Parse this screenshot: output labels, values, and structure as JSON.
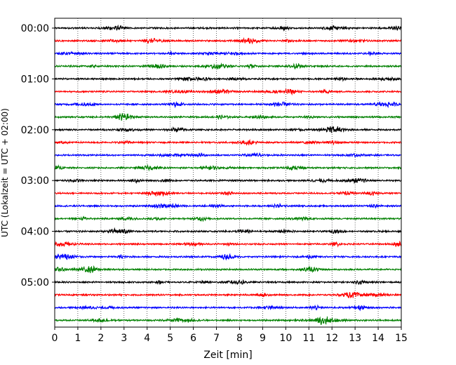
{
  "chart_data": {
    "type": "line",
    "title": "",
    "xlabel": "Zeit  [min]",
    "ylabel": "UTC (Lokalzeit = UTC + 02:00)",
    "xlim": [
      0,
      15
    ],
    "x_ticks": [
      0,
      1,
      2,
      3,
      4,
      5,
      6,
      7,
      8,
      9,
      10,
      11,
      12,
      13,
      14,
      15
    ],
    "grid": "vertical-dotted",
    "row_interval_min": 15,
    "row_colors": [
      "#000000",
      "#ff0000",
      "#0000ff",
      "#008000"
    ],
    "rows": [
      "00:00",
      "00:15",
      "00:30",
      "00:45",
      "01:00",
      "01:15",
      "01:30",
      "01:45",
      "02:00",
      "02:15",
      "02:30",
      "02:45",
      "03:00",
      "03:15",
      "03:30",
      "03:45",
      "04:00",
      "04:15",
      "04:30",
      "04:45",
      "05:00",
      "05:15",
      "05:30",
      "05:45"
    ],
    "y_tick_labels": [
      "00:00",
      "01:00",
      "02:00",
      "03:00",
      "04:00",
      "05:00"
    ]
  }
}
